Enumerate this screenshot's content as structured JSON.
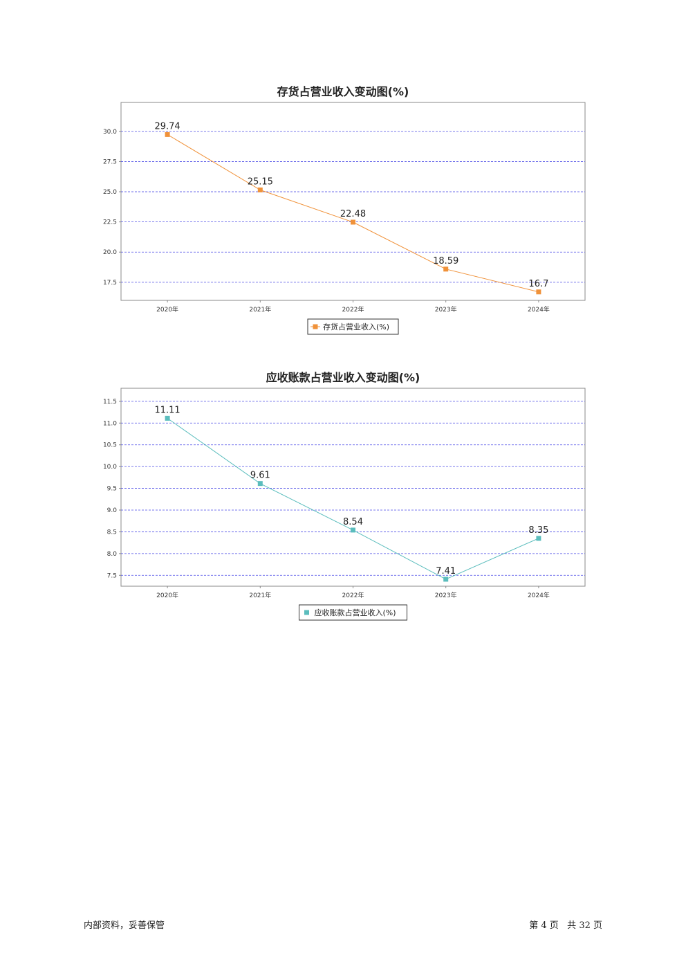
{
  "chart_data": [
    {
      "type": "line",
      "title": "存货占营业收入变动图(%)",
      "categories": [
        "2020年",
        "2021年",
        "2022年",
        "2023年",
        "2024年"
      ],
      "series": [
        {
          "name": "存货占营业收入(%)",
          "values": [
            29.74,
            25.15,
            22.48,
            18.59,
            16.7
          ],
          "color": "#f0923a"
        }
      ],
      "data_labels": [
        "29.74",
        "25.15",
        "22.48",
        "18.59",
        "16.7"
      ],
      "ylim": [
        16.0,
        32.4
      ],
      "yticks": [
        17.5,
        20.0,
        22.5,
        25.0,
        27.5,
        30.0
      ],
      "ytick_labels": [
        "17.5",
        "20.0",
        "22.5",
        "25.0",
        "27.5",
        "30.0"
      ],
      "grid": true,
      "grid_color": "#4a4ae6",
      "legend": "bottom-center",
      "xlabel": "",
      "ylabel": ""
    },
    {
      "type": "line",
      "title": "应收账款占营业收入变动图(%)",
      "categories": [
        "2020年",
        "2021年",
        "2022年",
        "2023年",
        "2024年"
      ],
      "series": [
        {
          "name": "应收账款占营业收入(%)",
          "values": [
            11.11,
            9.61,
            8.54,
            7.41,
            8.35
          ],
          "color": "#5bbdbd"
        }
      ],
      "data_labels": [
        "11.11",
        "9.61",
        "8.54",
        "7.41",
        "8.35"
      ],
      "ylim": [
        7.25,
        11.8
      ],
      "yticks": [
        7.5,
        8.0,
        8.5,
        9.0,
        9.5,
        10.0,
        10.5,
        11.0,
        11.5
      ],
      "ytick_labels": [
        "7.5",
        "8.0",
        "8.5",
        "9.0",
        "9.5",
        "10.0",
        "10.5",
        "11.0",
        "11.5"
      ],
      "grid": true,
      "grid_color": "#4a4ae6",
      "legend": "bottom-center",
      "xlabel": "",
      "ylabel": ""
    }
  ],
  "footer": {
    "left": "内部资料，妥善保管",
    "right": "第 4 页   共 32 页"
  }
}
